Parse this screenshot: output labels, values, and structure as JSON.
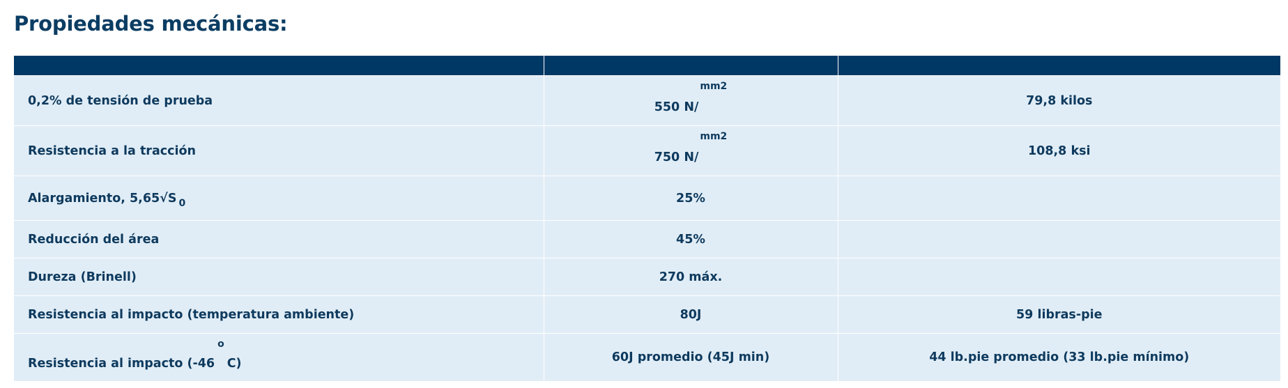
{
  "title": "Propiedades mecánicas:",
  "table": {
    "rows": [
      {
        "property": "0,2% de tensión de prueba",
        "metric_value": "550 N/",
        "metric_unit_sup": "mm2",
        "imperial": "79,8 kilos"
      },
      {
        "property": "Resistencia a la tracción",
        "metric_value": "750 N/",
        "metric_unit_sup": "mm2",
        "imperial": "108,8 ksi"
      },
      {
        "property": "Alargamiento, 5,65√S",
        "property_sub": "0",
        "metric": "25%",
        "imperial": ""
      },
      {
        "property": "Reducción del área",
        "metric": "45%",
        "imperial": ""
      },
      {
        "property": "Dureza (Brinell)",
        "metric": "270 máx.",
        "imperial": ""
      },
      {
        "property": "Resistencia al impacto (temperatura ambiente)",
        "metric": "80J",
        "imperial": "59 libras-pie"
      },
      {
        "property_prefix": "Resistencia al impacto (-46",
        "property_sup": "o",
        "property_suffix": "C)",
        "metric": "60J promedio (45J min)",
        "imperial": "44 lb.pie promedio (33 lb.pie mínimo)"
      }
    ]
  },
  "colors": {
    "header": "#003865",
    "row_bg": "#e1edf6",
    "text": "#0e3a5e"
  }
}
